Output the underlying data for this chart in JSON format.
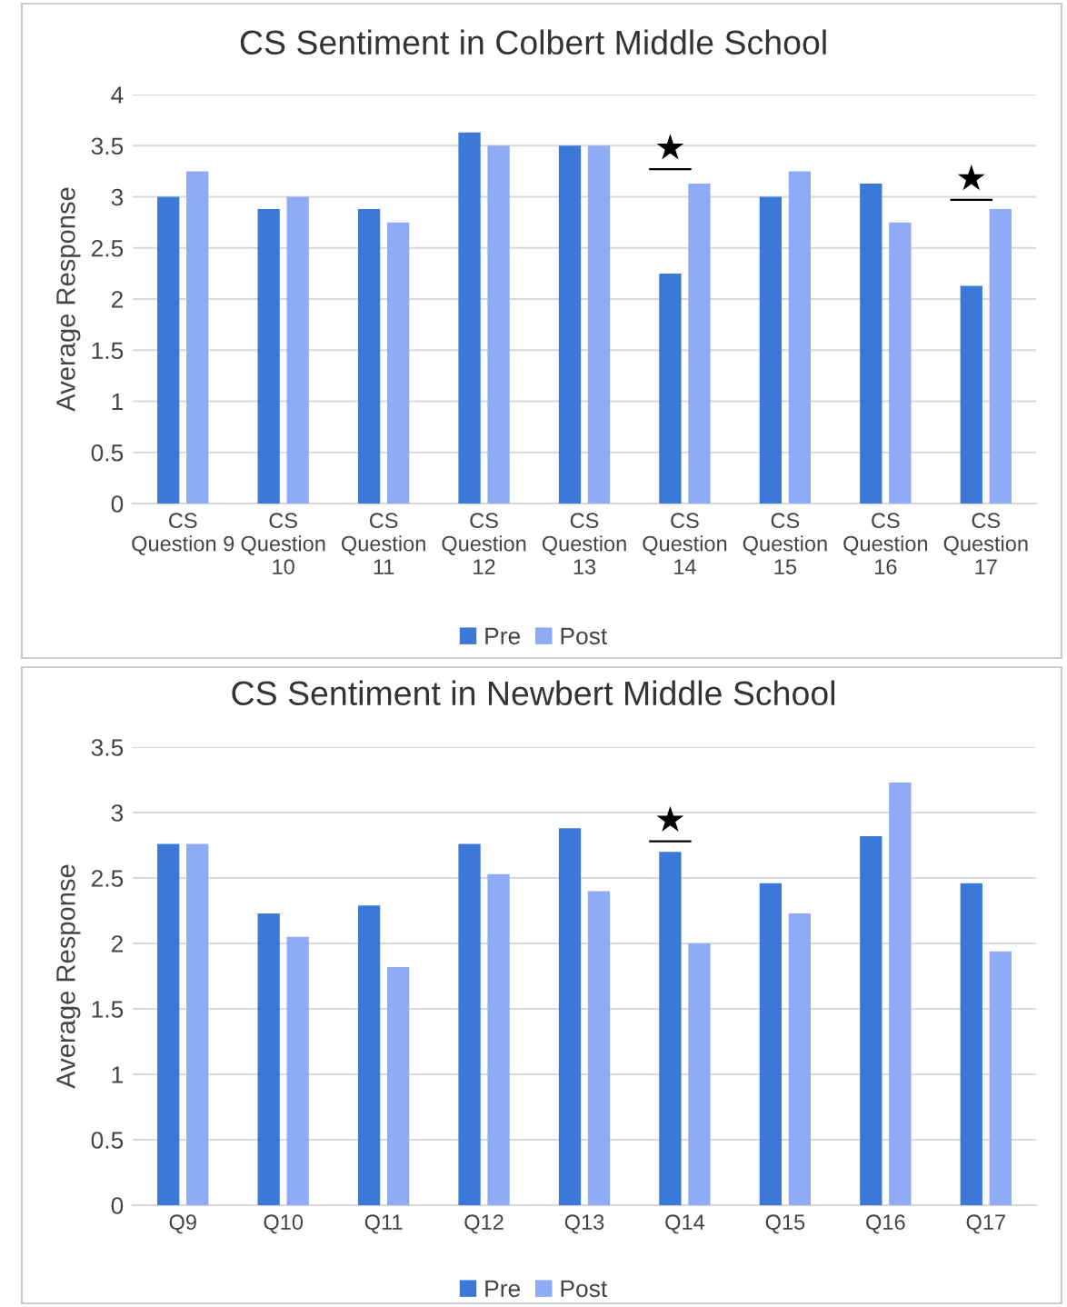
{
  "chart_data": [
    {
      "type": "bar",
      "title": "CS Sentiment in Colbert Middle School",
      "ylabel": "Average Response",
      "categories": [
        "CS\nQuestion 9",
        "CS\nQuestion\n10",
        "CS\nQuestion\n11",
        "CS\nQuestion\n12",
        "CS\nQuestion\n13",
        "CS\nQuestion\n14",
        "CS\nQuestion\n15",
        "CS\nQuestion\n16",
        "CS\nQuestion\n17"
      ],
      "series": [
        {
          "name": "Pre",
          "color": "#3c78d8",
          "values": [
            3,
            2.88,
            2.88,
            3.63,
            3.5,
            2.25,
            3,
            3.13,
            2.13
          ]
        },
        {
          "name": "Post",
          "color": "#8fabf5",
          "values": [
            3.25,
            3,
            2.75,
            3.5,
            3.5,
            3.13,
            3.25,
            2.75,
            2.88
          ]
        }
      ],
      "annotations": [
        "★",
        "★"
      ],
      "ylim": [
        0,
        4
      ],
      "yticks": [
        0,
        0.5,
        1,
        1.5,
        2,
        2.5,
        3,
        3.5,
        4
      ],
      "grid": "y",
      "legend": "bottom"
    },
    {
      "type": "bar",
      "title": "CS Sentiment in Newbert Middle School",
      "ylabel": "Average Response",
      "categories": [
        "Q9",
        "Q10",
        "Q11",
        "Q12",
        "Q13",
        "Q14",
        "Q15",
        "Q16",
        "Q17"
      ],
      "series": [
        {
          "name": "Pre",
          "color": "#3c78d8",
          "values": [
            2.76,
            2.23,
            2.29,
            2.76,
            2.88,
            2.7,
            2.46,
            2.82,
            2.46
          ]
        },
        {
          "name": "Post",
          "color": "#8fabf5",
          "values": [
            2.76,
            2.05,
            1.82,
            2.53,
            2.4,
            2.0,
            2.23,
            3.23,
            1.94
          ]
        }
      ],
      "annotations": [
        "★"
      ],
      "ylim": [
        0,
        3.5
      ],
      "yticks": [
        0,
        0.5,
        1,
        1.5,
        2,
        2.5,
        3,
        3.5
      ],
      "grid": "y",
      "legend": "bottom"
    }
  ]
}
